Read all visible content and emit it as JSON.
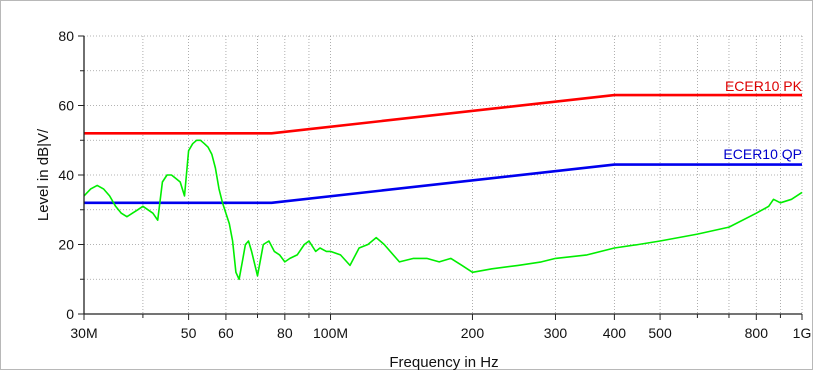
{
  "chart_data": {
    "type": "line",
    "title": "",
    "xlabel": "Frequency in Hz",
    "ylabel": "Level in dB|V/",
    "x_scale": "log",
    "xlim": [
      30000000,
      1000000000
    ],
    "ylim": [
      0,
      80
    ],
    "grid": true,
    "x_major_ticks": [
      {
        "value": 30000000,
        "label": "30M"
      },
      {
        "value": 50000000,
        "label": "50"
      },
      {
        "value": 60000000,
        "label": "60"
      },
      {
        "value": 80000000,
        "label": "80"
      },
      {
        "value": 100000000,
        "label": "100M"
      },
      {
        "value": 200000000,
        "label": "200"
      },
      {
        "value": 300000000,
        "label": "300"
      },
      {
        "value": 400000000,
        "label": "400"
      },
      {
        "value": 500000000,
        "label": "500"
      },
      {
        "value": 800000000,
        "label": "800"
      },
      {
        "value": 1000000000,
        "label": "1G"
      }
    ],
    "x_minor_ticks": [
      40000000,
      70000000,
      90000000,
      600000000,
      700000000,
      900000000
    ],
    "y_ticks": [
      {
        "value": 0,
        "label": "0"
      },
      {
        "value": 20,
        "label": "20"
      },
      {
        "value": 40,
        "label": "40"
      },
      {
        "value": 60,
        "label": "60"
      },
      {
        "value": 80,
        "label": "80"
      }
    ],
    "y_minor_ticks": [
      10,
      30,
      50,
      70
    ],
    "series": [
      {
        "name": "ECER10 PK",
        "color": "#ff0000",
        "x": [
          30000000,
          75000000,
          400000000,
          1000000000
        ],
        "y": [
          52,
          52,
          63,
          63
        ]
      },
      {
        "name": "ECER10 QP",
        "color": "#0000ee",
        "x": [
          30000000,
          75000000,
          400000000,
          1000000000
        ],
        "y": [
          32,
          32,
          43,
          43
        ]
      },
      {
        "color": "#00ee00",
        "x": [
          30000000,
          31000000,
          32000000,
          33000000,
          34000000,
          35000000,
          36000000,
          37000000,
          38000000,
          39000000,
          40000000,
          41000000,
          42000000,
          43000000,
          44000000,
          45000000,
          46000000,
          47000000,
          48000000,
          49000000,
          50000000,
          51000000,
          52000000,
          53000000,
          54000000,
          55000000,
          56000000,
          57000000,
          58000000,
          59000000,
          60000000,
          61000000,
          62000000,
          63000000,
          64000000,
          65000000,
          66000000,
          67000000,
          68000000,
          70000000,
          72000000,
          74000000,
          76000000,
          78000000,
          80000000,
          82000000,
          85000000,
          88000000,
          90000000,
          93000000,
          95000000,
          98000000,
          100000000,
          105000000,
          110000000,
          115000000,
          120000000,
          125000000,
          130000000,
          140000000,
          150000000,
          160000000,
          170000000,
          180000000,
          190000000,
          200000000,
          220000000,
          250000000,
          280000000,
          300000000,
          350000000,
          400000000,
          450000000,
          500000000,
          600000000,
          700000000,
          800000000,
          850000000,
          870000000,
          900000000,
          950000000,
          1000000000
        ],
        "y": [
          34,
          36,
          37,
          36,
          34,
          31,
          29,
          28,
          29,
          30,
          31,
          30,
          29,
          27,
          38,
          40,
          40,
          39,
          38,
          34,
          47,
          49,
          50,
          50,
          49,
          48,
          46,
          42,
          36,
          32,
          29,
          26,
          21,
          12,
          10,
          15,
          20,
          21,
          18,
          11,
          20,
          21,
          18,
          17,
          15,
          16,
          17,
          20,
          21,
          18,
          19,
          18,
          18,
          17,
          14,
          19,
          20,
          22,
          20,
          15,
          16,
          16,
          15,
          16,
          14,
          12,
          13,
          14,
          15,
          16,
          17,
          19,
          20,
          21,
          23,
          25,
          29,
          31,
          33,
          32,
          33,
          35
        ]
      }
    ],
    "annotations": [
      {
        "text": "ECER10 PK",
        "color": "#dd0000"
      },
      {
        "text": "ECER10 QP",
        "color": "#0000cc"
      }
    ]
  }
}
